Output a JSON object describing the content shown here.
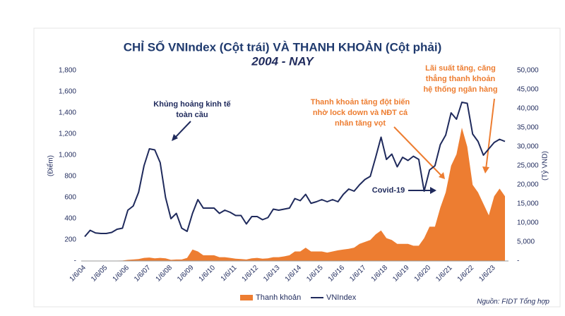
{
  "chart_data": {
    "type": "combo",
    "title": "CHỈ SỐ VNIndex (Cột trái) VÀ THANH KHOẢN (Cột phải)",
    "subtitle": "2004 - NAY",
    "ylabel": "(Điểm)",
    "y2label": "(Tỷ VND)",
    "source": "Nguồn: FIDT Tổng hợp",
    "categories": [
      "1/6/04",
      null,
      null,
      null,
      "1/6/05",
      null,
      null,
      null,
      "1/6/06",
      null,
      null,
      null,
      "1/6/07",
      null,
      null,
      null,
      "1/6/08",
      null,
      null,
      null,
      "1/6/09",
      null,
      null,
      null,
      "1/6/10",
      null,
      null,
      null,
      "1/6/11",
      null,
      null,
      null,
      "1/6/12",
      null,
      null,
      null,
      "1/6/13",
      null,
      null,
      null,
      "1/6/14",
      null,
      null,
      null,
      "1/6/15",
      null,
      null,
      null,
      "1/6/16",
      null,
      null,
      null,
      "1/6/17",
      null,
      null,
      null,
      "1/6/18",
      null,
      null,
      null,
      "1/6/19",
      null,
      null,
      null,
      "1/6/20",
      null,
      null,
      null,
      "1/6/21",
      null,
      null,
      null,
      "1/6/22",
      null,
      null,
      null,
      "1/6/23",
      null,
      null
    ],
    "series": [
      {
        "name": "VNIndex",
        "type": "line",
        "axis": "y",
        "color": "#1f2a5c",
        "values": [
          230,
          290,
          265,
          260,
          260,
          270,
          300,
          310,
          480,
          520,
          650,
          900,
          1060,
          1050,
          930,
          600,
          400,
          450,
          310,
          280,
          450,
          580,
          500,
          500,
          500,
          450,
          480,
          460,
          430,
          430,
          350,
          420,
          420,
          390,
          410,
          490,
          480,
          490,
          500,
          590,
          570,
          630,
          545,
          560,
          580,
          560,
          580,
          560,
          630,
          680,
          660,
          720,
          770,
          800,
          980,
          1170,
          960,
          1010,
          890,
          980,
          950,
          990,
          960,
          660,
          860,
          900,
          1100,
          1190,
          1400,
          1340,
          1500,
          1490,
          1200,
          1130,
          1000,
          1060,
          1120,
          1150,
          1130
        ]
      },
      {
        "name": "Thanh khoản",
        "type": "area",
        "axis": "y2",
        "color": "#ed7d31",
        "values": [
          50,
          50,
          60,
          70,
          80,
          80,
          100,
          120,
          300,
          400,
          500,
          800,
          900,
          700,
          800,
          700,
          300,
          400,
          400,
          800,
          3000,
          2500,
          1500,
          1500,
          1500,
          1000,
          1000,
          800,
          600,
          500,
          400,
          700,
          800,
          600,
          700,
          1000,
          1000,
          1200,
          1500,
          2500,
          2500,
          3500,
          2500,
          2500,
          2500,
          2200,
          2500,
          2800,
          3000,
          3200,
          3500,
          4500,
          5000,
          5500,
          7000,
          8000,
          6000,
          5500,
          4500,
          4500,
          4500,
          4000,
          4000,
          6000,
          9000,
          9000,
          14000,
          18000,
          25000,
          28000,
          35000,
          30000,
          20000,
          18000,
          15000,
          12000,
          17000,
          19000,
          17000
        ]
      }
    ],
    "ylim": [
      0,
      1800
    ],
    "yticks": [
      {
        "value": 0,
        "label": "-"
      },
      200,
      400,
      600,
      800,
      {
        "value": 1000,
        "label": "1,000"
      },
      {
        "value": 1200,
        "label": "1,200"
      },
      {
        "value": 1400,
        "label": "1,400"
      },
      {
        "value": 1600,
        "label": "1,600"
      },
      {
        "value": 1800,
        "label": "1,800"
      }
    ],
    "y2lim": [
      0,
      50000
    ],
    "y2ticks": [
      {
        "value": 0,
        "label": "-"
      },
      {
        "value": 5000,
        "label": "5,000"
      },
      {
        "value": 10000,
        "label": "10,000"
      },
      {
        "value": 15000,
        "label": "15,000"
      },
      {
        "value": 20000,
        "label": "20,000"
      },
      {
        "value": 25000,
        "label": "25,000"
      },
      {
        "value": 30000,
        "label": "30,000"
      },
      {
        "value": 35000,
        "label": "35,000"
      },
      {
        "value": 40000,
        "label": "40,000"
      },
      {
        "value": 45000,
        "label": "45,000"
      },
      {
        "value": 50000,
        "label": "50,000"
      }
    ],
    "annotations": [
      {
        "lines": [
          "Khủng hoảng kinh tế",
          "toàn cầu"
        ]
      },
      {
        "lines": [
          "Covid-19"
        ]
      },
      {
        "lines": [
          "Thanh khoản tăng đột biến",
          "nhờ lock down và NĐT cá",
          "nhân tăng vọt"
        ]
      },
      {
        "lines": [
          "Lãi suất tăng, căng",
          "thẳng thanh khoản",
          "hệ thống ngân hàng"
        ]
      }
    ]
  }
}
